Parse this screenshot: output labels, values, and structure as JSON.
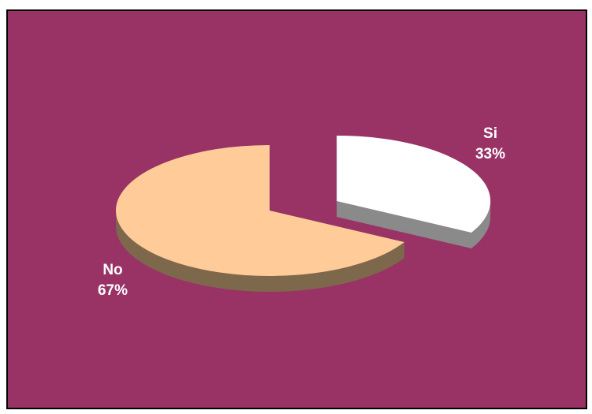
{
  "chart_data": {
    "type": "pie",
    "three_d": true,
    "slices": [
      {
        "label": "Si",
        "percent_label": "33%",
        "value": 33,
        "color": "#ffffff",
        "side_color": "#8a8a8a",
        "exploded": true
      },
      {
        "label": "No",
        "percent_label": "67%",
        "value": 67,
        "color": "#ffcc99",
        "side_color": "#7d684c",
        "exploded": false
      }
    ],
    "legend": "none",
    "background_color": "#993366",
    "border_color": "#000000"
  }
}
